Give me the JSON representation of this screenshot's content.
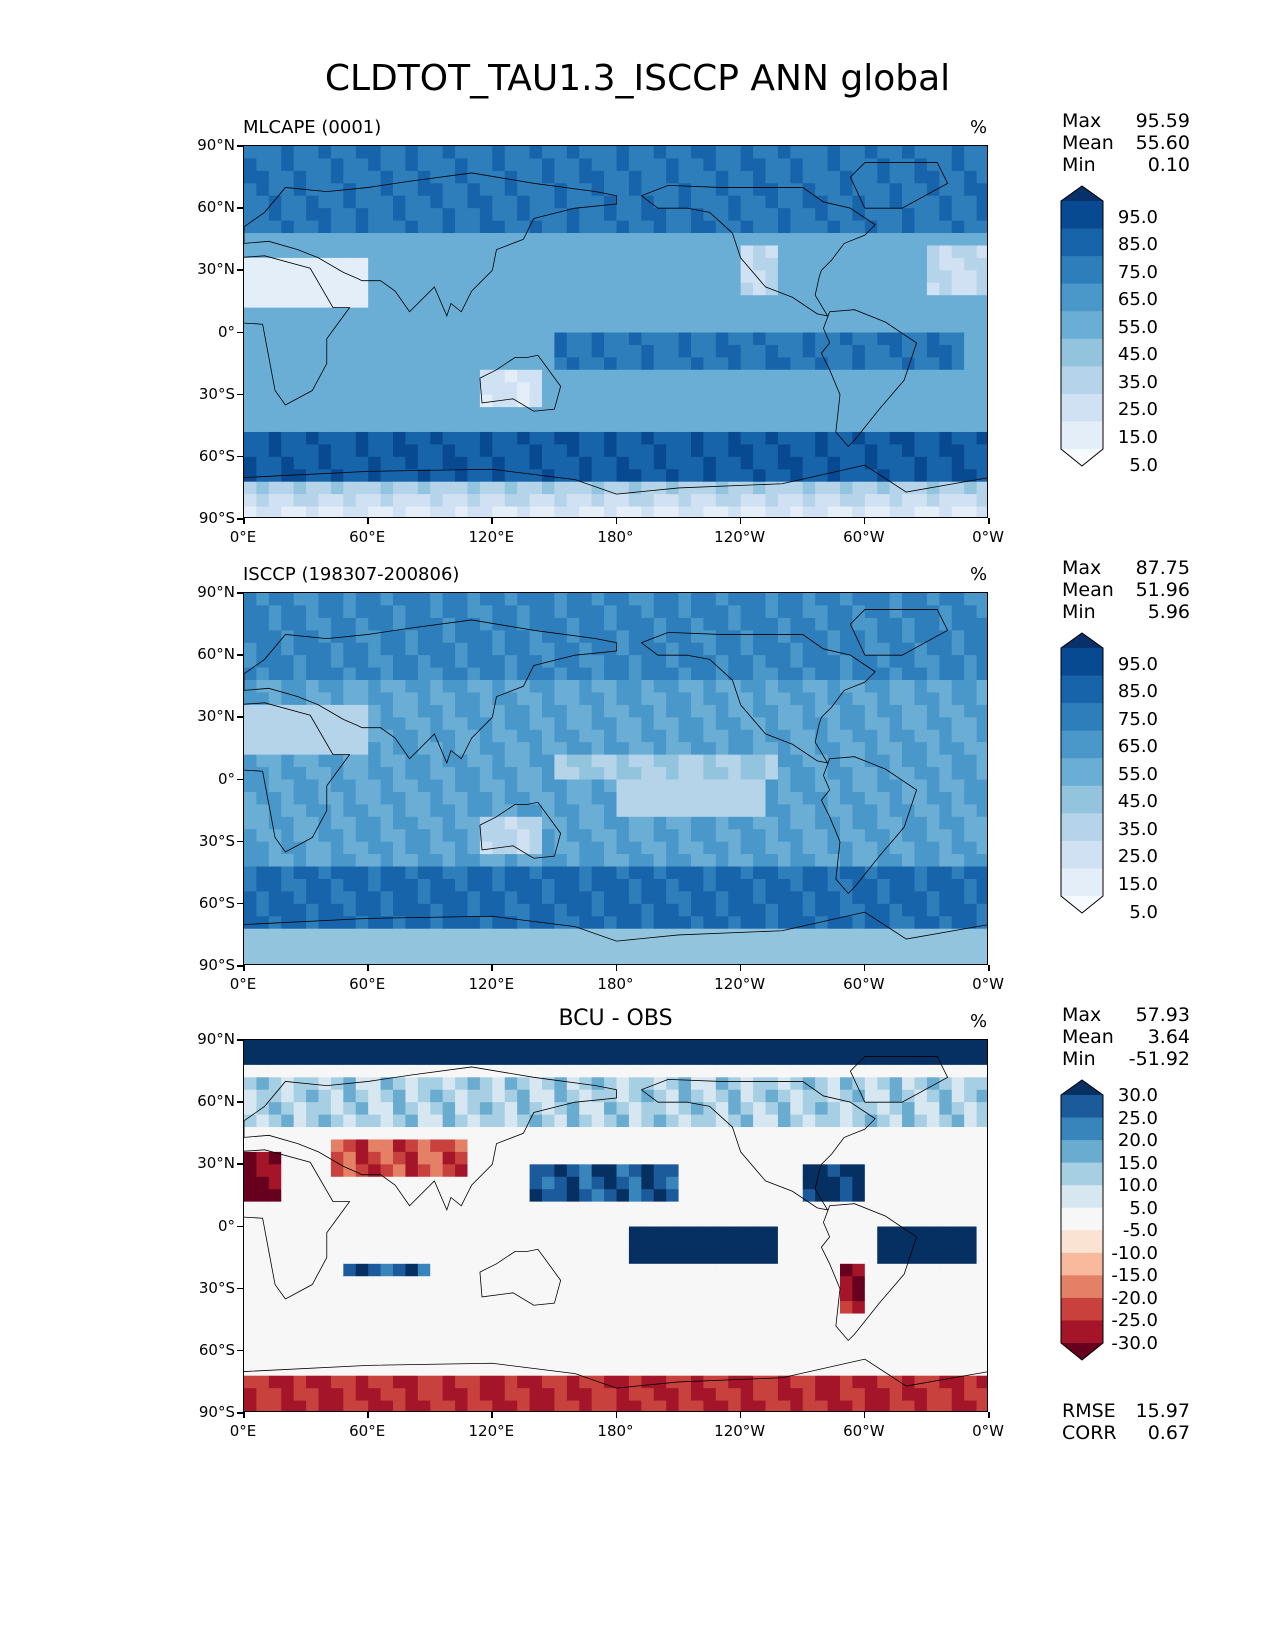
{
  "title": "CLDTOT_TAU1.3_ISCCP ANN global",
  "panels": [
    {
      "label": "MLCAPE (0001)",
      "center_title": "",
      "units": "%",
      "stats": {
        "max_label": "Max",
        "max": "95.59",
        "mean_label": "Mean",
        "mean": "55.60",
        "min_label": "Min",
        "min": "0.10"
      },
      "colorbar": {
        "cmap": "Blues",
        "labels": [
          "95.0",
          "85.0",
          "75.0",
          "65.0",
          "55.0",
          "45.0",
          "35.0",
          "25.0",
          "15.0",
          "5.0"
        ]
      }
    },
    {
      "label": "ISCCP (198307-200806)",
      "center_title": "",
      "units": "%",
      "stats": {
        "max_label": "Max",
        "max": "87.75",
        "mean_label": "Mean",
        "mean": "51.96",
        "min_label": "Min",
        "min": "5.96"
      },
      "colorbar": {
        "cmap": "Blues",
        "labels": [
          "95.0",
          "85.0",
          "75.0",
          "65.0",
          "55.0",
          "45.0",
          "35.0",
          "25.0",
          "15.0",
          "5.0"
        ]
      }
    },
    {
      "label": "",
      "center_title": "BCU - OBS",
      "units": "%",
      "stats": {
        "max_label": "Max",
        "max": "57.93",
        "mean_label": "Mean",
        "mean": "3.64",
        "min_label": "Min",
        "min": "-51.92"
      },
      "colorbar": {
        "cmap": "RdBu",
        "labels": [
          "30.0",
          "25.0",
          "20.0",
          "15.0",
          "10.0",
          "5.0",
          "-5.0",
          "-10.0",
          "-15.0",
          "-20.0",
          "-25.0",
          "-30.0"
        ]
      },
      "extra": {
        "rmse_label": "RMSE",
        "rmse": "15.97",
        "corr_label": "CORR",
        "corr": "0.67"
      }
    }
  ],
  "axes": {
    "yticks": [
      "90°N",
      "60°N",
      "30°N",
      "0°",
      "30°S",
      "60°S",
      "90°S"
    ],
    "xticks": [
      "0°E",
      "60°E",
      "120°E",
      "180°",
      "120°W",
      "60°W",
      "0°W"
    ]
  },
  "colors": {
    "blues": [
      "#f7fbff",
      "#e3eef9",
      "#cfe1f2",
      "#b5d4e9",
      "#93c4de",
      "#6aaed6",
      "#4a98c9",
      "#2e7ebc",
      "#1764ab",
      "#084a91",
      "#08306b"
    ],
    "rdbu": [
      "#67001f",
      "#a51529",
      "#c8413d",
      "#e48066",
      "#f8b99c",
      "#fbe3d4",
      "#f7f7f7",
      "#d6e7f1",
      "#a7cfe4",
      "#6aacd0",
      "#3885bc",
      "#1b5a9b",
      "#053061"
    ]
  }
}
